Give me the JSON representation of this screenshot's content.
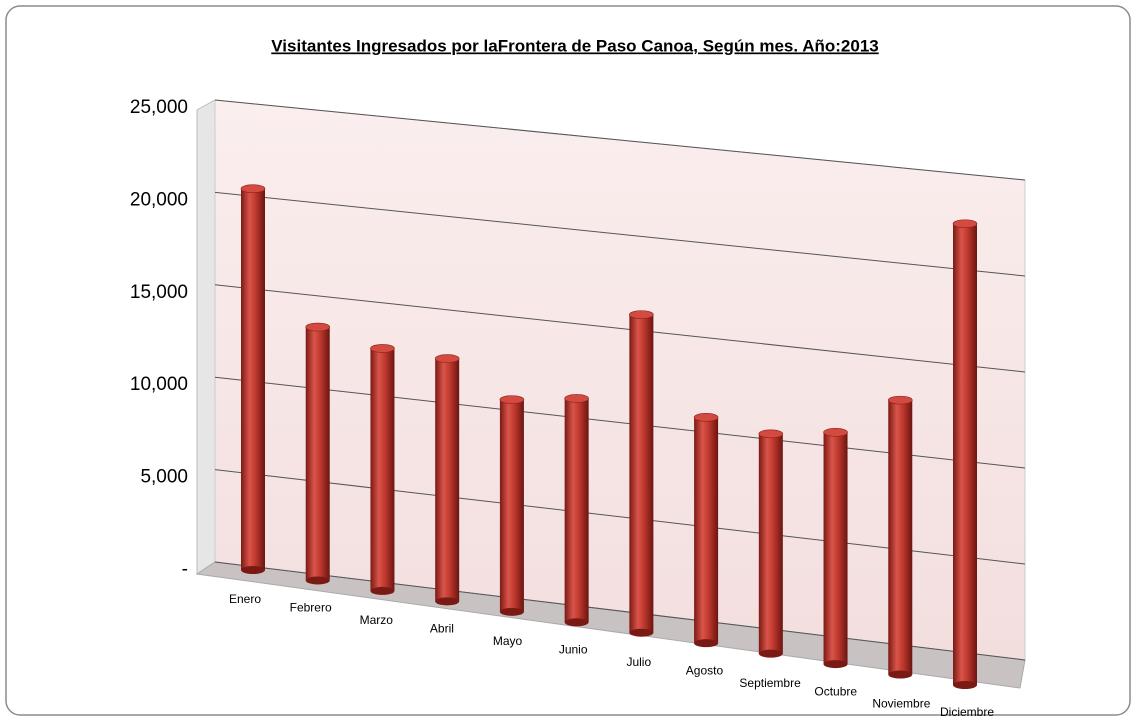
{
  "chart_data": {
    "type": "bar",
    "title": "Visitantes Ingresados por laFrontera de Paso Canoa, Según mes. Año:2013",
    "categories": [
      "Enero",
      "Febrero",
      "Marzo",
      "Abril",
      "Mayo",
      "Junio",
      "Julio",
      "Agosto",
      "Septiembre",
      "Octubre",
      "Noviembre",
      "Diciembre"
    ],
    "values": [
      20500,
      13500,
      12800,
      12700,
      11000,
      11500,
      16200,
      11400,
      11000,
      11500,
      13500,
      22500
    ],
    "color": "#c0392f",
    "ylim": [
      0,
      25000
    ],
    "yticks": [
      {
        "value": 0,
        "label": "-"
      },
      {
        "value": 5000,
        "label": "5,000"
      },
      {
        "value": 10000,
        "label": "10,000"
      },
      {
        "value": 15000,
        "label": "15,000"
      },
      {
        "value": 20000,
        "label": "20,000"
      },
      {
        "value": 25000,
        "label": "25,000"
      }
    ],
    "grid": true
  }
}
